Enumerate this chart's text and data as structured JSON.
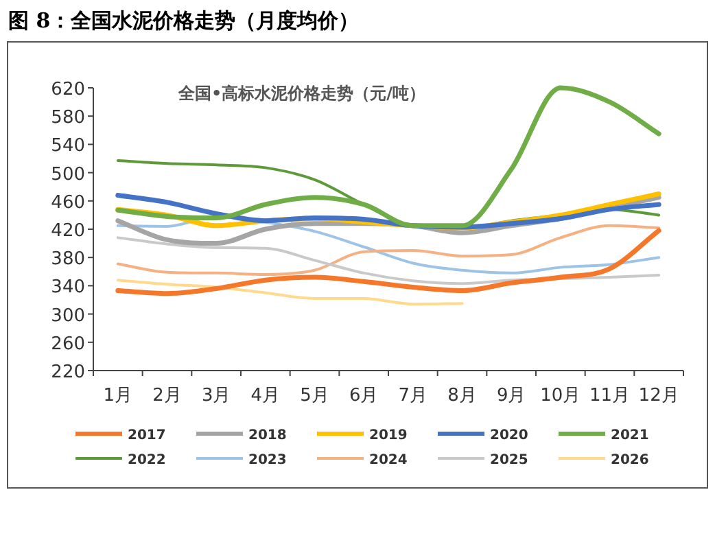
{
  "chart_data": {
    "type": "line",
    "title": "图 8：全国水泥价格走势（月度均价）",
    "subtitle": "全国•高标水泥价格走势（元/吨）",
    "categories": [
      "1月",
      "2月",
      "3月",
      "4月",
      "5月",
      "6月",
      "7月",
      "8月",
      "9月",
      "10月",
      "11月",
      "12月"
    ],
    "ylim": [
      220,
      620
    ],
    "yticks": [
      220,
      260,
      300,
      340,
      380,
      420,
      460,
      500,
      540,
      580,
      620
    ],
    "grid": false,
    "legend": "bottom",
    "marker": "none",
    "line_style": "solid",
    "series": [
      {
        "name": "2017",
        "color": "#f4772a",
        "values": [
          333,
          329,
          336,
          348,
          352,
          346,
          338,
          333,
          344,
          352,
          364,
          418
        ]
      },
      {
        "name": "2018",
        "color": "#a5a5a5",
        "values": [
          432,
          405,
          400,
          420,
          428,
          428,
          425,
          415,
          425,
          435,
          450,
          465
        ]
      },
      {
        "name": "2019",
        "color": "#ffc000",
        "values": [
          448,
          440,
          425,
          432,
          435,
          430,
          425,
          422,
          430,
          440,
          455,
          470
        ]
      },
      {
        "name": "2020",
        "color": "#4472c4",
        "values": [
          468,
          458,
          442,
          432,
          436,
          434,
          425,
          423,
          428,
          435,
          448,
          455
        ]
      },
      {
        "name": "2021",
        "color": "#70ad47",
        "values": [
          447,
          438,
          436,
          455,
          465,
          455,
          425,
          425,
          505,
          620,
          600,
          555
        ]
      },
      {
        "name": "2022",
        "color": "#5e9a3a",
        "values": [
          517,
          513,
          511,
          507,
          490,
          455,
          425,
          422,
          432,
          440,
          448,
          440
        ]
      },
      {
        "name": "2023",
        "color": "#9dc3e6",
        "values": [
          425,
          424,
          438,
          430,
          417,
          395,
          372,
          362,
          358,
          366,
          370,
          380
        ]
      },
      {
        "name": "2024",
        "color": "#f4b183",
        "values": [
          371,
          359,
          358,
          356,
          362,
          388,
          390,
          382,
          384,
          408,
          425,
          422
        ]
      },
      {
        "name": "2025",
        "color": "#c9c9c9",
        "values": [
          408,
          399,
          394,
          393,
          376,
          358,
          347,
          343,
          348,
          350,
          352,
          355
        ]
      },
      {
        "name": "2026",
        "color": "#ffd98e",
        "values": [
          348,
          342,
          338,
          330,
          322,
          322,
          314,
          315,
          null,
          null,
          null,
          null
        ]
      }
    ]
  }
}
